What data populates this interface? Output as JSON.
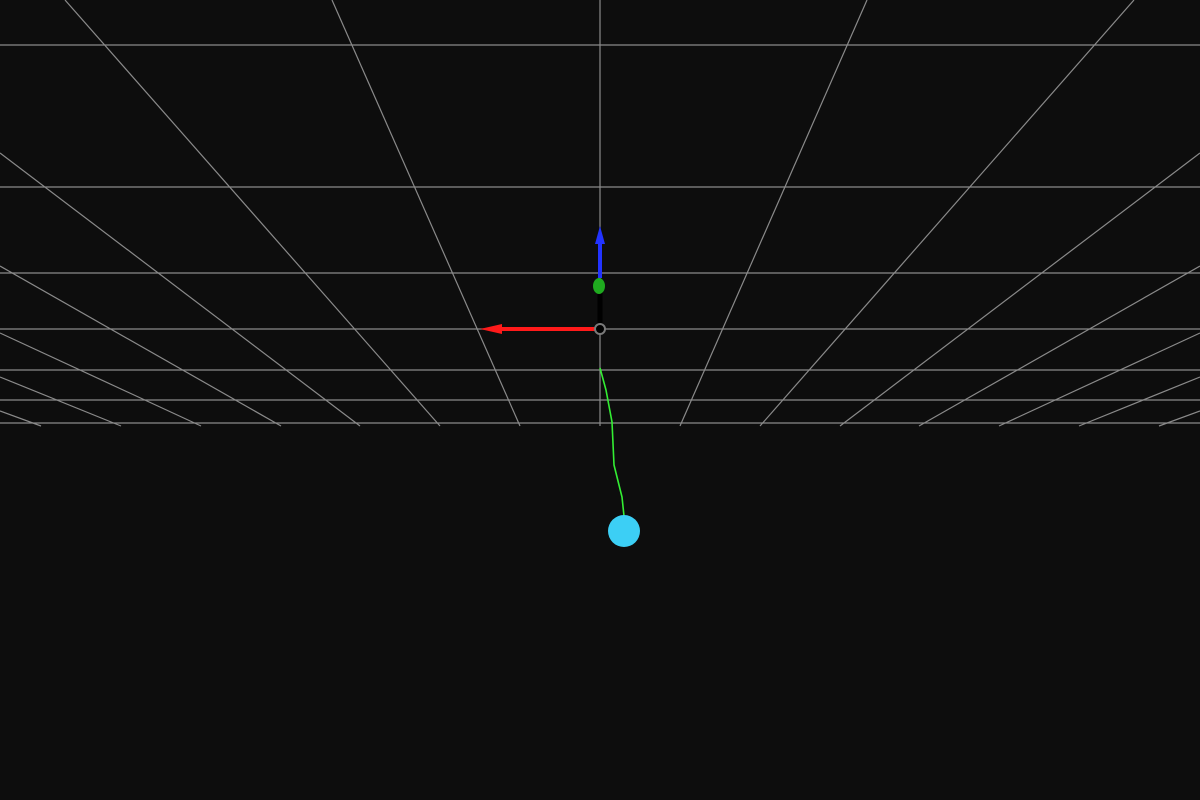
{
  "scene": {
    "background": "#0d0d0d",
    "grid_color": "#8a8a8a"
  },
  "axes": {
    "x_color": "#ff1a1a",
    "y_color": "#1faa1f",
    "z_color": "#2233ff",
    "origin_color": "#000000"
  },
  "trajectory": {
    "color": "#33ee33"
  },
  "target": {
    "color": "#3ccff5",
    "icon": "sphere-marker"
  }
}
